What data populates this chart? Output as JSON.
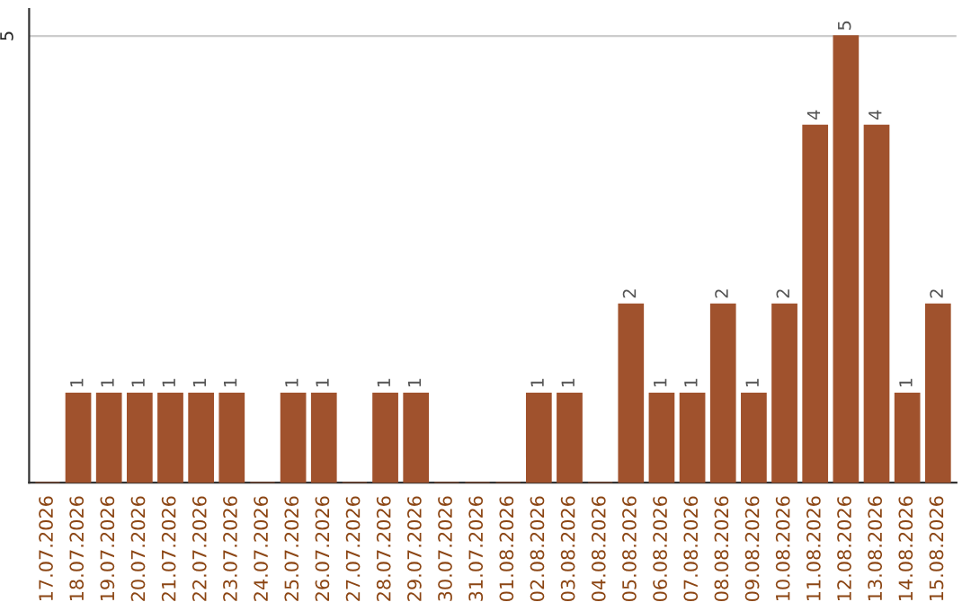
{
  "chart_data": {
    "type": "bar",
    "categories": [
      "17.07.2026",
      "18.07.2026",
      "19.07.2026",
      "20.07.2026",
      "21.07.2026",
      "22.07.2026",
      "23.07.2026",
      "24.07.2026",
      "25.07.2026",
      "26.07.2026",
      "27.07.2026",
      "28.07.2026",
      "29.07.2026",
      "30.07.2026",
      "31.07.2026",
      "01.08.2026",
      "02.08.2026",
      "03.08.2026",
      "04.08.2026",
      "05.08.2026",
      "06.08.2026",
      "07.08.2026",
      "08.08.2026",
      "09.08.2026",
      "10.08.2026",
      "11.08.2026",
      "12.08.2026",
      "13.08.2026",
      "14.08.2026",
      "15.08.2026"
    ],
    "values": [
      0,
      1,
      1,
      1,
      1,
      1,
      1,
      0,
      1,
      1,
      0,
      1,
      1,
      0,
      0,
      0,
      1,
      1,
      0,
      2,
      1,
      1,
      2,
      1,
      2,
      4,
      5,
      4,
      1,
      2
    ],
    "value_labels": [
      null,
      "1",
      "1",
      "1",
      "1",
      "1",
      "1",
      null,
      "1",
      "1",
      null,
      "1",
      "1",
      null,
      null,
      null,
      "1",
      "1",
      null,
      "2",
      "1",
      "1",
      "2",
      "1",
      "2",
      "4",
      "5",
      "4",
      "1",
      "2"
    ],
    "color": "#a0522d",
    "ylim": [
      0,
      5.3
    ],
    "yticks": [
      5
    ],
    "grid": "y"
  }
}
